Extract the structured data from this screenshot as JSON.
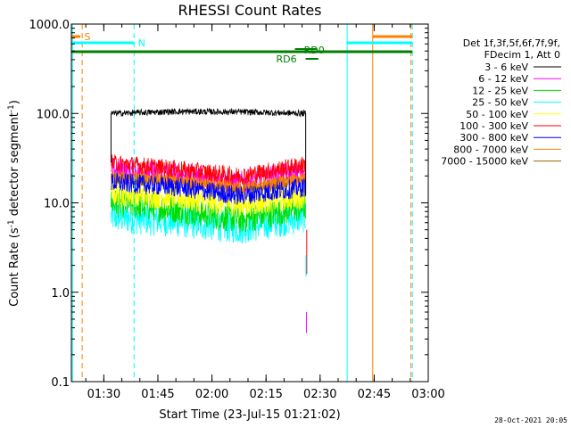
{
  "chart_data": {
    "type": "line",
    "title": "RHESSI Count Rates",
    "xlabel": "Start Time (23-Jul-15 01:21:02)",
    "ylabel_main": "Count Rate (s",
    "ylabel_sup": "-1",
    "ylabel_tail": " detector segment",
    "ylabel_sup2": "-1",
    "ylabel_close": ")",
    "y_scale": "log",
    "ylim": [
      0.1,
      1000
    ],
    "xlim_minutes": [
      0,
      99
    ],
    "x_ticks": [
      {
        "label": "01:30",
        "min": 9
      },
      {
        "label": "01:45",
        "min": 24
      },
      {
        "label": "02:00",
        "min": 39
      },
      {
        "label": "02:15",
        "min": 54
      },
      {
        "label": "02:30",
        "min": 69
      },
      {
        "label": "02:45",
        "min": 84
      },
      {
        "label": "03:00",
        "min": 99
      }
    ],
    "y_ticks": [
      {
        "label": "1000.0",
        "value": 1000
      },
      {
        "label": "100.0",
        "value": 100
      },
      {
        "label": "10.0",
        "value": 10
      },
      {
        "label": "1.0",
        "value": 1
      },
      {
        "label": "0.1",
        "value": 0.1
      }
    ],
    "legend_header": [
      "Det 1f,3f,5f,6f,7f,9f,",
      "FDecim 1, Att 0"
    ],
    "series": [
      {
        "name": "3 - 6 keV",
        "color": "#000000",
        "level": [
          100,
          105,
          104,
          100
        ]
      },
      {
        "name": "6 - 12 keV",
        "color": "#ff00ff",
        "level": [
          24,
          21,
          17,
          23
        ]
      },
      {
        "name": "12 - 25 keV",
        "color": "#00dd00",
        "level": [
          10,
          8.5,
          6.5,
          9
        ]
      },
      {
        "name": "25 - 50 keV",
        "color": "#00ffff",
        "level": [
          7,
          6.2,
          5.2,
          7
        ]
      },
      {
        "name": "50 - 100 keV",
        "color": "#ffff00",
        "level": [
          13,
          11.5,
          9.5,
          12
        ]
      },
      {
        "name": "100 - 300 keV",
        "color": "#ff0000",
        "level": [
          28,
          24,
          20,
          27
        ]
      },
      {
        "name": "300 - 800 keV",
        "color": "#0000ff",
        "level": [
          17,
          15,
          12,
          15
        ]
      },
      {
        "name": "800 - 7000 keV",
        "color": "#ff8000",
        "level": [
          20,
          18,
          15,
          19
        ]
      },
      {
        "name": "7000 - 15000 keV",
        "color": "#996600",
        "level": [
          19,
          17,
          14,
          18
        ]
      }
    ],
    "data_interval_minutes": [
      11,
      65
    ],
    "annotations": {
      "saa_label": "S",
      "night_label": "N",
      "rd_labels": [
        "RD0",
        "RD6"
      ]
    },
    "timestamp": "28-Oct-2021 20:05"
  }
}
